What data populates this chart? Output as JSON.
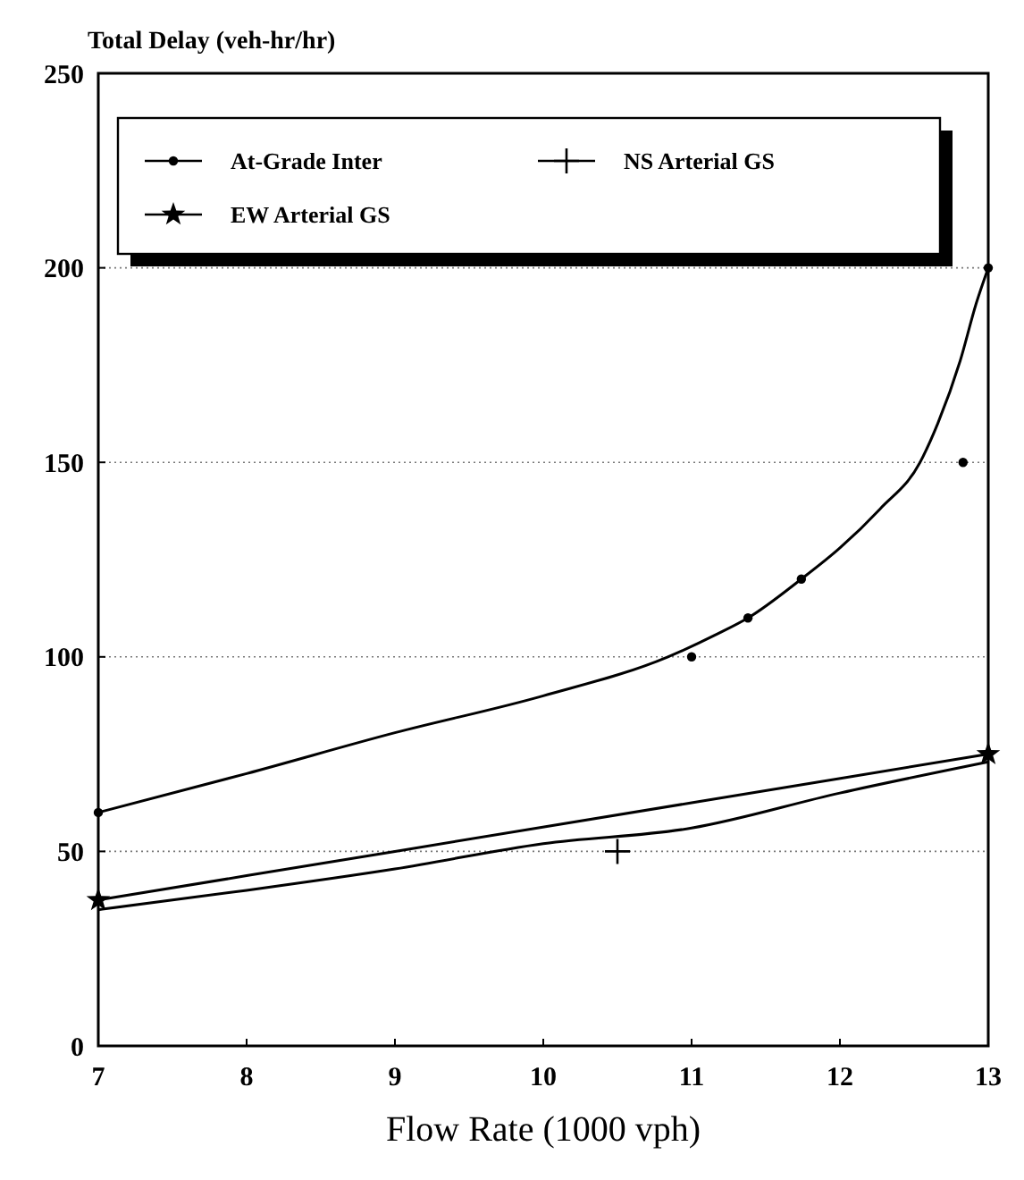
{
  "chart_data": {
    "type": "line",
    "ylabel": "Total Delay (veh-hr/hr)",
    "xlabel": "Flow Rate (1000 vph)",
    "xlim": [
      7,
      13
    ],
    "xticks": [
      7,
      8,
      9,
      10,
      11,
      12,
      13
    ],
    "ylim": [
      0,
      250
    ],
    "yticks": [
      0,
      50,
      100,
      150,
      200,
      250
    ],
    "grid": "y",
    "legend": "top",
    "line_style": "solid",
    "series": [
      {
        "color": "#000000",
        "marker": "none",
        "x": [
          7,
          8,
          9,
          10,
          10.84,
          11.18,
          11.38,
          11.74,
          12,
          12.27,
          12.54,
          12.66,
          12.81,
          12.92,
          13
        ],
        "values": [
          60,
          70,
          80.5,
          90,
          100,
          106,
          110,
          120,
          128,
          138,
          150,
          160,
          176,
          191,
          200
        ]
      },
      {
        "color": "#000000",
        "marker": "none",
        "x": [
          7,
          9,
          11,
          13
        ],
        "values": [
          37.5,
          50,
          62.5,
          75
        ]
      },
      {
        "color": "#000000",
        "marker": "none",
        "x": [
          7,
          8,
          9,
          10,
          11,
          12,
          13
        ],
        "values": [
          35,
          40,
          45.5,
          52,
          56,
          65,
          73
        ]
      },
      {
        "type": "scatter",
        "name": "At-Grade Inter",
        "color": "#000000",
        "marker": "circle",
        "x": [
          7,
          11,
          11.38,
          11.74,
          12.83,
          13
        ],
        "values": [
          60,
          100,
          110,
          120,
          150,
          200
        ]
      },
      {
        "type": "scatter",
        "name": "NS Arterial GS",
        "color": "#000000",
        "marker": "cross",
        "x": [
          10.5
        ],
        "values": [
          50
        ]
      },
      {
        "type": "scatter",
        "name": "EW Arterial GS",
        "color": "#000000",
        "marker": "star",
        "x": [
          7,
          13
        ],
        "values": [
          37.5,
          75
        ]
      }
    ]
  }
}
